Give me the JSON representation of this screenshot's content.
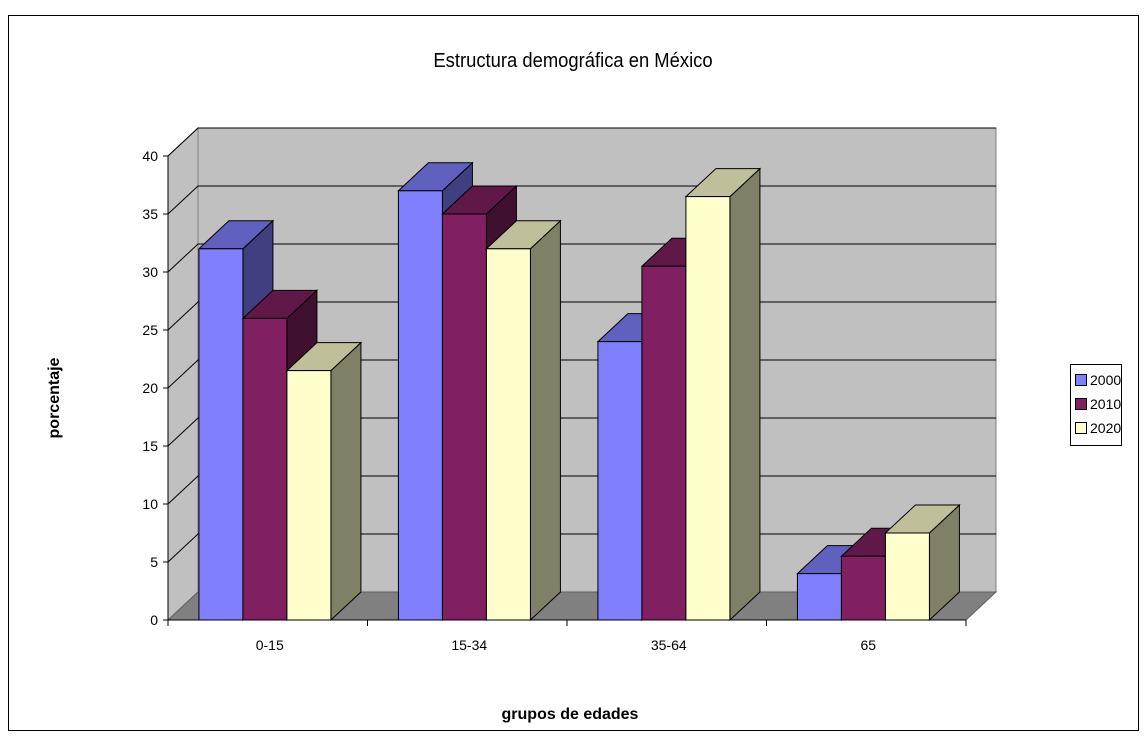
{
  "chart_data": {
    "type": "bar",
    "title": "Estructura demográfica en México",
    "xlabel": "grupos de edades",
    "ylabel": "porcentaje",
    "categories": [
      "0-15",
      "15-34",
      "35-64",
      "65"
    ],
    "series": [
      {
        "name": "2000",
        "values": [
          32,
          37,
          24,
          4
        ],
        "color": "#8080FF"
      },
      {
        "name": "2010",
        "values": [
          26,
          35,
          30.5,
          5.5
        ],
        "color": "#802060"
      },
      {
        "name": "2020",
        "values": [
          21.5,
          32,
          36.5,
          7.5
        ],
        "color": "#FFFFCC"
      }
    ],
    "yticks": [
      "0",
      "5",
      "10",
      "15",
      "20",
      "25",
      "30",
      "35",
      "40"
    ],
    "ylim": [
      0,
      40
    ],
    "grid": true,
    "legend_position": "right",
    "style": "3d-column"
  }
}
